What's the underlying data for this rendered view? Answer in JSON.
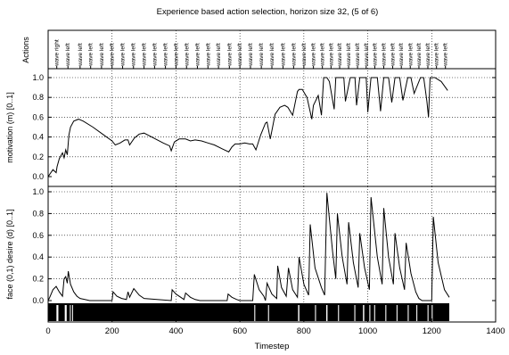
{
  "chart_data": {
    "type": "line",
    "title": "Experience based action selection, horizon size 32, (5 of 6)",
    "xlabel": "Timestep",
    "xlim": [
      0,
      1400
    ],
    "xticks": [
      0,
      200,
      400,
      600,
      800,
      1000,
      1200,
      1400
    ],
    "grid_x": [
      200,
      400,
      600,
      800,
      1000,
      1200
    ],
    "actions_panel": {
      "ylabel": "Actions",
      "labels": [
        {
          "t": 27,
          "text": "wave right"
        },
        {
          "t": 62,
          "text": "wave left"
        },
        {
          "t": 100,
          "text": "wave left"
        },
        {
          "t": 133,
          "text": "wave left"
        },
        {
          "t": 167,
          "text": "wave left"
        },
        {
          "t": 200,
          "text": "wave left"
        },
        {
          "t": 233,
          "text": "wave left"
        },
        {
          "t": 267,
          "text": "wave left"
        },
        {
          "t": 300,
          "text": "wave left"
        },
        {
          "t": 333,
          "text": "wave left"
        },
        {
          "t": 367,
          "text": "wave left"
        },
        {
          "t": 400,
          "text": "wave left"
        },
        {
          "t": 433,
          "text": "wave left"
        },
        {
          "t": 467,
          "text": "wave left"
        },
        {
          "t": 500,
          "text": "wave left"
        },
        {
          "t": 533,
          "text": "wave left"
        },
        {
          "t": 567,
          "text": "wave left"
        },
        {
          "t": 600,
          "text": "wave left"
        },
        {
          "t": 633,
          "text": "wave left"
        },
        {
          "t": 667,
          "text": "wave left"
        },
        {
          "t": 700,
          "text": "wave left"
        },
        {
          "t": 735,
          "text": "wave left"
        },
        {
          "t": 768,
          "text": "wave left"
        },
        {
          "t": 800,
          "text": "wave left"
        },
        {
          "t": 830,
          "text": "wave left"
        },
        {
          "t": 858,
          "text": "wave left"
        },
        {
          "t": 885,
          "text": "wave left"
        },
        {
          "t": 912,
          "text": "wave left"
        },
        {
          "t": 940,
          "text": "wave left"
        },
        {
          "t": 968,
          "text": "wave left"
        },
        {
          "t": 995,
          "text": "wave left"
        },
        {
          "t": 1022,
          "text": "wave left"
        },
        {
          "t": 1050,
          "text": "wave left"
        },
        {
          "t": 1078,
          "text": "wave left"
        },
        {
          "t": 1105,
          "text": "wave left"
        },
        {
          "t": 1133,
          "text": "wave left"
        },
        {
          "t": 1160,
          "text": "wave left"
        },
        {
          "t": 1188,
          "text": "wave left"
        },
        {
          "t": 1215,
          "text": "wave left"
        },
        {
          "t": 1243,
          "text": "wave left"
        }
      ]
    },
    "motivation_panel": {
      "ylabel": "motivation (m) [0..1]",
      "ylim": [
        0,
        1
      ],
      "yticks": [
        0.0,
        0.2,
        0.4,
        0.6,
        0.8,
        1.0
      ],
      "x": [
        0,
        15,
        25,
        28,
        35,
        45,
        50,
        55,
        60,
        65,
        70,
        80,
        95,
        110,
        140,
        170,
        200,
        210,
        225,
        240,
        250,
        255,
        270,
        285,
        300,
        330,
        360,
        380,
        385,
        395,
        410,
        430,
        445,
        460,
        480,
        500,
        520,
        545,
        565,
        575,
        585,
        600,
        615,
        630,
        640,
        650,
        665,
        680,
        685,
        695,
        710,
        725,
        740,
        750,
        765,
        780,
        785,
        795,
        810,
        825,
        830,
        845,
        855,
        862,
        868,
        872,
        880,
        895,
        900,
        910,
        925,
        930,
        945,
        960,
        965,
        975,
        995,
        1000,
        1010,
        1030,
        1040,
        1050,
        1065,
        1075,
        1085,
        1100,
        1110,
        1125,
        1135,
        1145,
        1165,
        1175,
        1185,
        1190,
        1195,
        1210,
        1230,
        1250
      ],
      "y": [
        0.0,
        0.07,
        0.04,
        0.1,
        0.18,
        0.24,
        0.19,
        0.27,
        0.22,
        0.42,
        0.5,
        0.56,
        0.58,
        0.56,
        0.5,
        0.43,
        0.36,
        0.32,
        0.34,
        0.37,
        0.37,
        0.32,
        0.39,
        0.43,
        0.44,
        0.39,
        0.34,
        0.31,
        0.26,
        0.35,
        0.38,
        0.38,
        0.36,
        0.37,
        0.36,
        0.34,
        0.32,
        0.28,
        0.25,
        0.3,
        0.33,
        0.33,
        0.34,
        0.33,
        0.33,
        0.27,
        0.42,
        0.54,
        0.55,
        0.38,
        0.63,
        0.7,
        0.72,
        0.7,
        0.62,
        0.86,
        0.88,
        0.88,
        0.8,
        0.58,
        0.72,
        0.82,
        0.62,
        1.0,
        1.0,
        1.0,
        0.96,
        0.68,
        1.0,
        1.0,
        1.0,
        0.76,
        1.0,
        1.0,
        0.72,
        1.0,
        1.0,
        0.65,
        1.0,
        1.0,
        0.66,
        1.0,
        1.0,
        0.75,
        1.0,
        1.0,
        0.77,
        1.0,
        1.0,
        0.84,
        1.0,
        1.0,
        0.76,
        0.6,
        1.0,
        1.0,
        0.96,
        0.87
      ]
    },
    "desire_panel": {
      "ylabel": "face (0,1)  desire (d) [0..1]",
      "ylim": [
        0,
        1
      ],
      "yticks": [
        0.0,
        0.2,
        0.4,
        0.6,
        0.8,
        1.0
      ],
      "x": [
        0,
        5,
        15,
        25,
        35,
        45,
        50,
        55,
        60,
        63,
        70,
        80,
        90,
        100,
        115,
        130,
        140,
        200,
        203,
        215,
        230,
        245,
        250,
        255,
        268,
        285,
        300,
        385,
        388,
        400,
        415,
        425,
        430,
        445,
        460,
        475,
        560,
        563,
        575,
        590,
        600,
        640,
        645,
        660,
        675,
        680,
        685,
        700,
        715,
        718,
        730,
        745,
        752,
        765,
        780,
        785,
        800,
        815,
        820,
        835,
        855,
        865,
        872,
        890,
        900,
        905,
        920,
        935,
        940,
        955,
        970,
        975,
        990,
        1005,
        1010,
        1030,
        1045,
        1050,
        1065,
        1080,
        1085,
        1100,
        1115,
        1120,
        1135,
        1150,
        1160,
        1170,
        1190,
        1200,
        1205,
        1220,
        1240,
        1255
      ],
      "y": [
        0.0,
        0.03,
        0.1,
        0.13,
        0.08,
        0.04,
        0.2,
        0.22,
        0.16,
        0.27,
        0.15,
        0.08,
        0.04,
        0.02,
        0.01,
        0.0,
        0.0,
        0.0,
        0.08,
        0.04,
        0.02,
        0.01,
        0.08,
        0.03,
        0.11,
        0.05,
        0.02,
        0.0,
        0.1,
        0.06,
        0.03,
        0.01,
        0.07,
        0.03,
        0.01,
        0.0,
        0.0,
        0.06,
        0.03,
        0.01,
        0.0,
        0.0,
        0.24,
        0.1,
        0.04,
        0.0,
        0.16,
        0.06,
        0.02,
        0.32,
        0.12,
        0.04,
        0.3,
        0.1,
        0.03,
        0.4,
        0.15,
        0.05,
        0.7,
        0.3,
        0.12,
        0.05,
        0.99,
        0.45,
        0.2,
        0.8,
        0.4,
        0.15,
        0.72,
        0.35,
        0.12,
        0.62,
        0.3,
        0.1,
        0.95,
        0.4,
        0.15,
        0.85,
        0.4,
        0.15,
        0.62,
        0.3,
        0.1,
        0.53,
        0.25,
        0.08,
        0.02,
        0.0,
        0.0,
        0.0,
        0.77,
        0.35,
        0.1,
        0.03
      ]
    },
    "face_intervals": [
      [
        26,
        32
      ],
      [
        52,
        58
      ],
      [
        68,
        70
      ],
      [
        75,
        76
      ],
      [
        645,
        648
      ],
      [
        688,
        691
      ],
      [
        782,
        786
      ],
      [
        835,
        838
      ],
      [
        870,
        874
      ],
      [
        907,
        910
      ],
      [
        958,
        961
      ],
      [
        985,
        989
      ],
      [
        1005,
        1008
      ],
      [
        1020,
        1023
      ],
      [
        1055,
        1058
      ],
      [
        1090,
        1093
      ],
      [
        1125,
        1128
      ],
      [
        1152,
        1155
      ],
      [
        1187,
        1190
      ],
      [
        1200,
        1203
      ]
    ]
  }
}
